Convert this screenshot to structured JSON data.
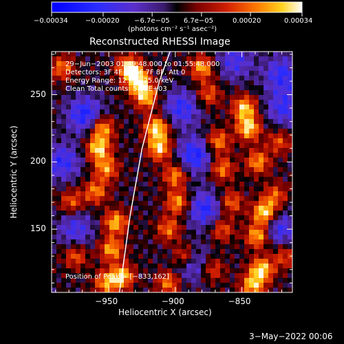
{
  "chart_data": {
    "type": "heatmap",
    "title": "Reconstructed RHESSI Image",
    "xlabel": "Heliocentric X (arcsec)",
    "ylabel": "Heliocentric Y (arcsec)",
    "xlim": [
      -993,
      -812
    ],
    "ylim": [
      103,
      282
    ],
    "x_ticks": [
      -950,
      -900,
      -850
    ],
    "x_tick_labels": [
      "−950",
      "−900",
      "−850"
    ],
    "y_ticks": [
      150,
      200,
      250
    ],
    "y_tick_labels": [
      "150",
      "200",
      "250"
    ],
    "colorbar": {
      "range": [
        -0.00034,
        0.00034
      ],
      "tick_values": [
        -0.00034,
        -0.0002,
        -6.7e-05,
        6.7e-05,
        0.0002,
        0.00034
      ],
      "tick_labels": [
        "−0.00034",
        "−0.00020",
        "−6.7e−05",
        "6.7e−05",
        "0.00020",
        "0.00034"
      ],
      "unit_label": "(photons cm⁻² s⁻¹ asec⁻²)"
    },
    "annotations": [
      "29−Jun−2003 01:49:48.000 to 01:55:48.000",
      "Detectors: 3F 4F 5F 6F 7F 8F, Att 0",
      "Energy Range: 12.0 − 25.0 keV",
      "Clean     Total counts: 5.05E+03"
    ],
    "peak_label": "Position of Peak = [−833,162]",
    "limb_curve": [
      [
        -942,
        103
      ],
      [
        -934,
        160
      ],
      [
        -925,
        210
      ],
      [
        -912,
        260
      ],
      [
        -904,
        282
      ]
    ],
    "bright_sources": [
      {
        "x": -935,
        "y": 270,
        "level": 0.9
      },
      {
        "x": -928,
        "y": 260,
        "level": 1.0
      },
      {
        "x": -922,
        "y": 248,
        "level": 0.8
      },
      {
        "x": -914,
        "y": 225,
        "level": 0.95
      },
      {
        "x": -912,
        "y": 210,
        "level": 0.85
      },
      {
        "x": -955,
        "y": 225,
        "level": 0.8
      },
      {
        "x": -958,
        "y": 210,
        "level": 0.9
      },
      {
        "x": -952,
        "y": 195,
        "level": 0.7
      },
      {
        "x": -960,
        "y": 178,
        "level": 0.65
      },
      {
        "x": -945,
        "y": 155,
        "level": 0.8
      },
      {
        "x": -948,
        "y": 135,
        "level": 0.75
      },
      {
        "x": -940,
        "y": 115,
        "level": 0.85
      },
      {
        "x": -952,
        "y": 110,
        "level": 0.7
      },
      {
        "x": -978,
        "y": 170,
        "level": 0.55
      },
      {
        "x": -975,
        "y": 130,
        "level": 0.55
      },
      {
        "x": -985,
        "y": 270,
        "level": 0.6
      },
      {
        "x": -900,
        "y": 190,
        "level": 0.7
      },
      {
        "x": -898,
        "y": 170,
        "level": 0.75
      },
      {
        "x": -905,
        "y": 150,
        "level": 0.6
      },
      {
        "x": -893,
        "y": 130,
        "level": 0.7
      },
      {
        "x": -905,
        "y": 110,
        "level": 0.65
      },
      {
        "x": -880,
        "y": 270,
        "level": 0.75
      },
      {
        "x": -875,
        "y": 250,
        "level": 0.55
      },
      {
        "x": -868,
        "y": 215,
        "level": 0.7
      },
      {
        "x": -865,
        "y": 195,
        "level": 0.65
      },
      {
        "x": -858,
        "y": 170,
        "level": 0.6
      },
      {
        "x": -848,
        "y": 240,
        "level": 0.85
      },
      {
        "x": -845,
        "y": 225,
        "level": 0.9
      },
      {
        "x": -838,
        "y": 200,
        "level": 0.7
      },
      {
        "x": -833,
        "y": 162,
        "level": 1.0
      },
      {
        "x": -838,
        "y": 145,
        "level": 0.85
      },
      {
        "x": -835,
        "y": 120,
        "level": 0.9
      },
      {
        "x": -842,
        "y": 108,
        "level": 0.8
      },
      {
        "x": -822,
        "y": 215,
        "level": 0.5
      },
      {
        "x": -825,
        "y": 175,
        "level": 0.55
      },
      {
        "x": -818,
        "y": 130,
        "level": 0.5
      },
      {
        "x": -865,
        "y": 150,
        "level": 0.55
      },
      {
        "x": -872,
        "y": 120,
        "level": 0.5
      }
    ],
    "dark_regions": [
      {
        "x": -968,
        "y": 235,
        "level": -0.7
      },
      {
        "x": -985,
        "y": 200,
        "level": -0.6
      },
      {
        "x": -975,
        "y": 150,
        "level": -0.5
      },
      {
        "x": -895,
        "y": 240,
        "level": -0.6
      },
      {
        "x": -885,
        "y": 205,
        "level": -0.7
      },
      {
        "x": -878,
        "y": 165,
        "level": -0.65
      },
      {
        "x": -888,
        "y": 125,
        "level": -0.55
      },
      {
        "x": -820,
        "y": 265,
        "level": -0.6
      },
      {
        "x": -818,
        "y": 240,
        "level": -0.55
      },
      {
        "x": -855,
        "y": 275,
        "level": -0.5
      },
      {
        "x": -822,
        "y": 150,
        "level": -0.55
      }
    ]
  },
  "footer": {
    "date": "3−May−2022 00:06"
  },
  "colors": {
    "background": "#000000",
    "text": "#ffffff"
  }
}
